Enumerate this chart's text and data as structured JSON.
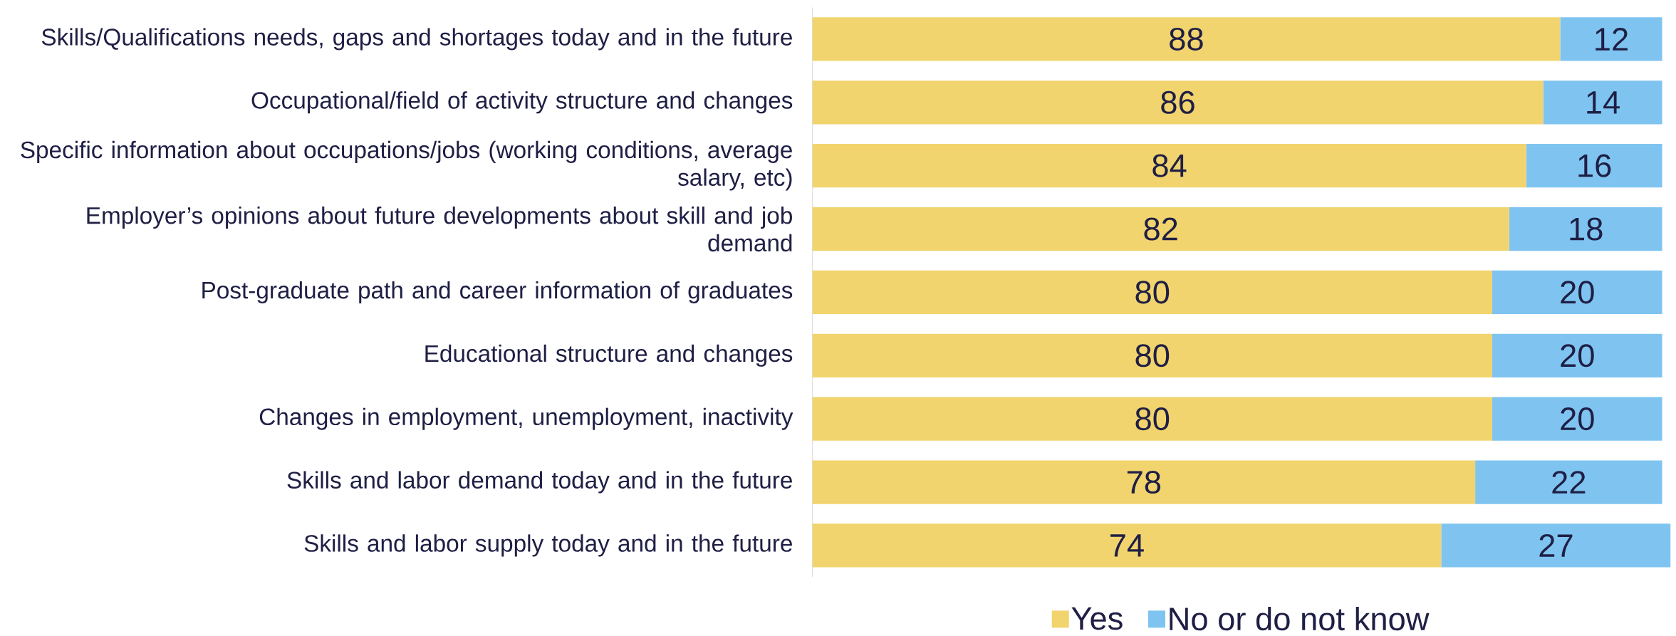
{
  "chart_data": {
    "type": "bar",
    "orientation": "horizontal",
    "stacked": true,
    "data_labels": true,
    "legend": "bottom",
    "categories": [
      "Skills/Qualifications needs, gaps and shortages today and in the future",
      "Occupational/field of activity structure and changes",
      "Specific information about occupations/jobs (working conditions, average salary, etc)",
      "Employer’s opinions about future developments about skill and job demand",
      "Post-graduate path and career information of graduates",
      "Educational structure and changes",
      "Changes in employment, unemployment, inactivity",
      "Skills and labor demand today and in the future",
      "Skills and labor supply today and in the future"
    ],
    "series": [
      {
        "name": "Yes",
        "color": "#f2d46e",
        "values": [
          88,
          86,
          84,
          82,
          80,
          80,
          80,
          78,
          74
        ]
      },
      {
        "name": "No or do not know",
        "color": "#7fc4f0",
        "values": [
          12,
          14,
          16,
          18,
          20,
          20,
          20,
          22,
          27
        ]
      }
    ]
  }
}
